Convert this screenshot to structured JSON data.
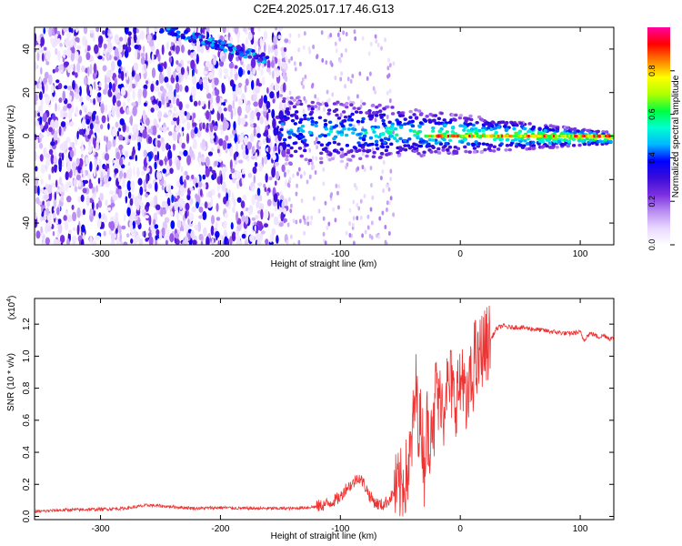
{
  "title": "C2E4.2025.017.17.46.G13",
  "colors": {
    "snr_line": "#ee3333",
    "colormap": [
      "#ffffff",
      "#e9d8ff",
      "#b98cf2",
      "#7a2fe0",
      "#3a0cd8",
      "#0000ff",
      "#00b8ff",
      "#00ffd0",
      "#00ff40",
      "#b0ff00",
      "#ffff00",
      "#ff8000",
      "#ff0000",
      "#ff00a0"
    ]
  },
  "chart_data": [
    {
      "type": "heatmap",
      "title": "",
      "xlabel": "Height of straight line (km)",
      "ylabel": "Frequency (Hz)",
      "xlim": [
        -355,
        128
      ],
      "ylim": [
        -50,
        50
      ],
      "x_ticks": [
        -300,
        -200,
        -100,
        0,
        100
      ],
      "y_ticks": [
        -40,
        -20,
        0,
        20,
        40
      ],
      "colorbar": {
        "label": "Normalized spectral amplitude",
        "range": [
          0,
          1
        ],
        "ticks": [
          0.0,
          0.2,
          0.4,
          0.6,
          0.8
        ]
      },
      "features": [
        {
          "name": "tone",
          "x_range": [
            -150,
            128
          ],
          "frequency": 0,
          "peak_amplitude": 1.0
        },
        {
          "name": "drift",
          "x_range": [
            -250,
            -160
          ],
          "frequency_range": [
            50,
            35
          ],
          "peak_amplitude": 0.5
        }
      ]
    },
    {
      "type": "line",
      "title": "",
      "xlabel": "Height of straight line (km)",
      "ylabel": "SNR (10 * v/v)",
      "y_multiplier": "(x10",
      "y_multiplier_exp": "4",
      "xlim": [
        -355,
        128
      ],
      "ylim": [
        -0.02,
        1.36
      ],
      "x_ticks": [
        -300,
        -200,
        -100,
        0,
        100
      ],
      "y_ticks": [
        0.0,
        0.2,
        0.4,
        0.6,
        0.8,
        1.0,
        1.2
      ],
      "series": [
        {
          "x": [
            -355,
            -330,
            -300,
            -280,
            -260,
            -240,
            -220,
            -200,
            -180,
            -160,
            -140,
            -120,
            -110,
            -100,
            -95,
            -90,
            -85,
            -80,
            -75,
            -70,
            -65,
            -60,
            -55,
            -50,
            -45,
            -42,
            -40,
            -37,
            -35,
            -32,
            -30,
            -28,
            -26,
            -24,
            -22,
            -20,
            -18,
            -16,
            -14,
            -12,
            -10,
            -8,
            -5,
            -2,
            0,
            2,
            5,
            8,
            10,
            12,
            14,
            16,
            18,
            20,
            22,
            25,
            28,
            30,
            35,
            40,
            50,
            60,
            70,
            80,
            90,
            100,
            103,
            105,
            108,
            110,
            115,
            120,
            125,
            128
          ],
          "y": [
            0.03,
            0.04,
            0.045,
            0.05,
            0.07,
            0.06,
            0.05,
            0.055,
            0.05,
            0.05,
            0.05,
            0.06,
            0.08,
            0.12,
            0.18,
            0.2,
            0.25,
            0.2,
            0.12,
            0.08,
            0.07,
            0.1,
            0.15,
            0.18,
            0.25,
            0.35,
            0.5,
            0.8,
            0.6,
            0.55,
            0.3,
            0.6,
            0.45,
            0.7,
            0.5,
            0.9,
            0.65,
            0.8,
            0.62,
            0.9,
            0.75,
            0.85,
            0.7,
            0.8,
            0.78,
            0.95,
            0.6,
            0.85,
            0.8,
            1.05,
            0.9,
            1.0,
            1.05,
            1.05,
            1.08,
            1.1,
            1.14,
            1.17,
            1.19,
            1.18,
            1.18,
            1.17,
            1.16,
            1.15,
            1.14,
            1.15,
            1.1,
            1.12,
            1.14,
            1.14,
            1.12,
            1.13,
            1.11,
            1.11
          ]
        }
      ]
    }
  ]
}
